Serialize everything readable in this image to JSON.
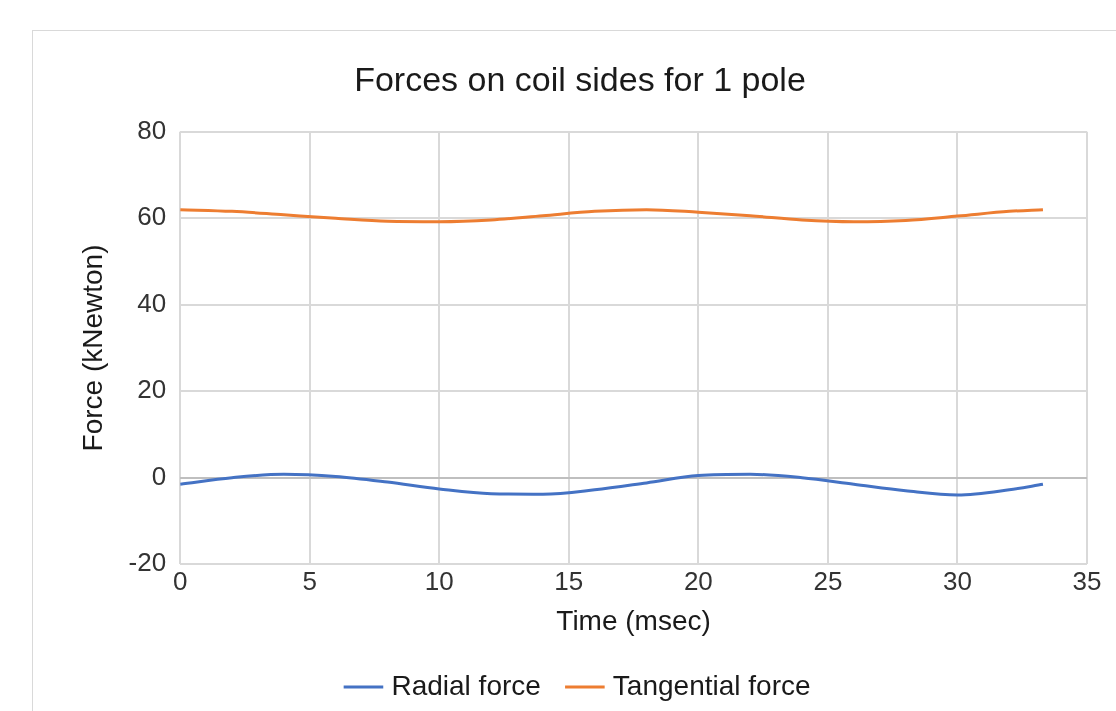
{
  "chart_data": {
    "type": "line",
    "title": "Forces on coil sides for 1 pole",
    "xlabel": "Time (msec)",
    "ylabel": "Force (kNewton)",
    "x": [
      0,
      2,
      4,
      6,
      8,
      10,
      12,
      14,
      16,
      18,
      20,
      22,
      24,
      26,
      28,
      30,
      32,
      33.3
    ],
    "series": [
      {
        "name": "Radial force",
        "color": "#4472c4",
        "values": [
          -1.5,
          0,
          0.8,
          0.3,
          -1,
          -2.6,
          -3.7,
          -3.8,
          -2.8,
          -1.2,
          0.5,
          0.8,
          0,
          -1.5,
          -3,
          -4,
          -2.8,
          -1.5
        ]
      },
      {
        "name": "Tangential force",
        "color": "#ed7d31",
        "values": [
          62,
          61.6,
          60.8,
          60,
          59.3,
          59.2,
          59.6,
          60.6,
          61.6,
          62,
          61.4,
          60.6,
          59.6,
          59.2,
          59.5,
          60.5,
          61.6,
          62
        ]
      }
    ],
    "xlim": [
      0,
      35
    ],
    "xticks": [
      0,
      5,
      10,
      15,
      20,
      25,
      30,
      35
    ],
    "ylim": [
      -20,
      80
    ],
    "yticks": [
      -20,
      0,
      20,
      40,
      60,
      80
    ],
    "grid": true,
    "legend": "bottom",
    "marker": "none",
    "line_style": "solid"
  }
}
